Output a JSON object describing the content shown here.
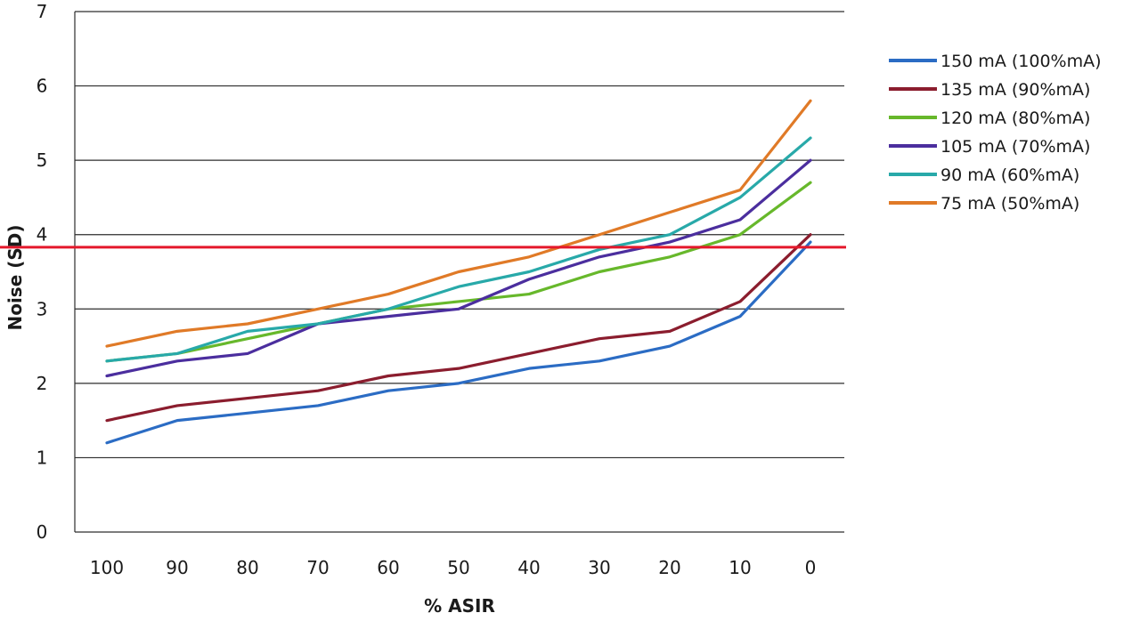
{
  "chart_data": {
    "type": "line",
    "xlabel": "% ASIR",
    "ylabel": "Noise (SD)",
    "categories": [
      "100",
      "90",
      "80",
      "70",
      "60",
      "50",
      "40",
      "30",
      "20",
      "10",
      "0"
    ],
    "ylim": [
      0,
      7
    ],
    "yticks": [
      "0",
      "1",
      "2",
      "3",
      "4",
      "5",
      "6",
      "7"
    ],
    "grid": true,
    "legend_position": "right",
    "reference_line": {
      "y": 3.83,
      "color": "#e4182b"
    },
    "series": [
      {
        "name": "150 mA (100%mA)",
        "color": "#2b6cc4",
        "values": [
          1.2,
          1.5,
          1.6,
          1.7,
          1.9,
          2.0,
          2.2,
          2.3,
          2.5,
          2.9,
          3.9
        ]
      },
      {
        "name": "135 mA (90%mA)",
        "color": "#8b1d2e",
        "values": [
          1.5,
          1.7,
          1.8,
          1.9,
          2.1,
          2.2,
          2.4,
          2.6,
          2.7,
          3.1,
          4.0
        ]
      },
      {
        "name": "120 mA (80%mA)",
        "color": "#67b82b",
        "values": [
          2.3,
          2.4,
          2.6,
          2.8,
          3.0,
          3.1,
          3.2,
          3.5,
          3.7,
          4.0,
          4.7
        ]
      },
      {
        "name": "105 mA (70%mA)",
        "color": "#4b2e9e",
        "values": [
          2.1,
          2.3,
          2.4,
          2.8,
          2.9,
          3.0,
          3.4,
          3.7,
          3.9,
          4.2,
          5.0
        ]
      },
      {
        "name": "90 mA (60%mA)",
        "color": "#28a9a9",
        "values": [
          2.3,
          2.4,
          2.7,
          2.8,
          3.0,
          3.3,
          3.5,
          3.8,
          4.0,
          4.5,
          5.3
        ]
      },
      {
        "name": "75 mA (50%mA)",
        "color": "#e07a27",
        "values": [
          2.5,
          2.7,
          2.8,
          3.0,
          3.2,
          3.5,
          3.7,
          4.0,
          4.3,
          4.6,
          5.8
        ]
      }
    ]
  }
}
